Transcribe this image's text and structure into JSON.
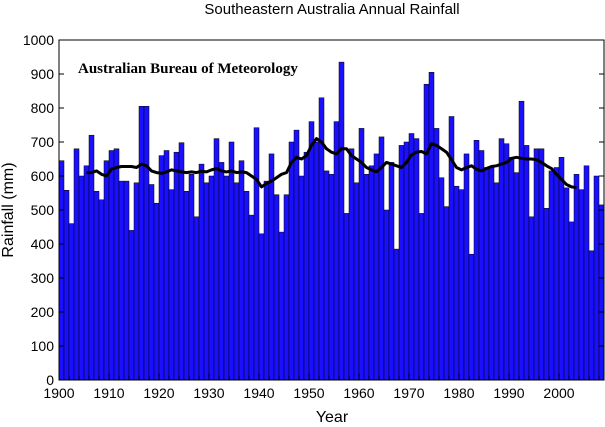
{
  "chart_data": {
    "type": "bar",
    "title": "Southeastern Australia Annual Rainfall",
    "xlabel": "Year",
    "ylabel": "Rainfall (mm)",
    "annotation": "Australian Bureau of Meteorology",
    "xlim": [
      1900,
      2009
    ],
    "ylim": [
      0,
      1000
    ],
    "yticks": [
      0,
      100,
      200,
      300,
      400,
      500,
      600,
      700,
      800,
      900,
      1000
    ],
    "xticks": [
      1900,
      1910,
      1920,
      1930,
      1940,
      1950,
      1960,
      1970,
      1980,
      1990,
      2000
    ],
    "grid": false,
    "bar_color": "#1a10ff",
    "line_color": "#000000",
    "years": [
      1900,
      1901,
      1902,
      1903,
      1904,
      1905,
      1906,
      1907,
      1908,
      1909,
      1910,
      1911,
      1912,
      1913,
      1914,
      1915,
      1916,
      1917,
      1918,
      1919,
      1920,
      1921,
      1922,
      1923,
      1924,
      1925,
      1926,
      1927,
      1928,
      1929,
      1930,
      1931,
      1932,
      1933,
      1934,
      1935,
      1936,
      1937,
      1938,
      1939,
      1940,
      1941,
      1942,
      1943,
      1944,
      1945,
      1946,
      1947,
      1948,
      1949,
      1950,
      1951,
      1952,
      1953,
      1954,
      1955,
      1956,
      1957,
      1958,
      1959,
      1960,
      1961,
      1962,
      1963,
      1964,
      1965,
      1966,
      1967,
      1968,
      1969,
      1970,
      1971,
      1972,
      1973,
      1974,
      1975,
      1976,
      1977,
      1978,
      1979,
      1980,
      1981,
      1982,
      1983,
      1984,
      1985,
      1986,
      1987,
      1988,
      1989,
      1990,
      1991,
      1992,
      1993,
      1994,
      1995,
      1996,
      1997,
      1998,
      1999,
      2000,
      2001,
      2002,
      2003,
      2004,
      2005,
      2006,
      2007,
      2008
    ],
    "series": [
      {
        "type": "bar",
        "values": [
          645,
          558,
          460,
          680,
          600,
          630,
          720,
          555,
          530,
          645,
          675,
          680,
          585,
          585,
          440,
          580,
          805,
          805,
          575,
          520,
          660,
          675,
          560,
          670,
          698,
          555,
          605,
          480,
          635,
          580,
          600,
          710,
          640,
          600,
          700,
          580,
          645,
          555,
          485,
          742,
          430,
          585,
          665,
          545,
          435,
          545,
          700,
          735,
          600,
          670,
          760,
          700,
          830,
          615,
          605,
          760,
          935,
          490,
          680,
          580,
          740,
          605,
          630,
          665,
          715,
          500,
          640,
          385,
          690,
          700,
          725,
          710,
          490,
          870,
          905,
          740,
          595,
          510,
          775,
          570,
          560,
          665,
          370,
          705,
          675,
          625,
          625,
          580,
          710,
          695,
          655,
          610,
          820,
          690,
          480,
          680,
          680,
          505,
          615,
          625,
          655,
          565,
          465,
          605,
          560,
          630,
          380,
          600,
          515
        ]
      },
      {
        "type": "line",
        "x": [
          1905,
          1906,
          1907,
          1908,
          1909,
          1910,
          1911,
          1912,
          1913,
          1914,
          1915,
          1916,
          1917,
          1918,
          1919,
          1920,
          1921,
          1922,
          1923,
          1924,
          1925,
          1926,
          1927,
          1928,
          1929,
          1930,
          1931,
          1932,
          1933,
          1934,
          1935,
          1936,
          1937,
          1938,
          1939,
          1940,
          1941,
          1942,
          1943,
          1944,
          1945,
          1946,
          1947,
          1948,
          1949,
          1950,
          1951,
          1952,
          1953,
          1954,
          1955,
          1956,
          1957,
          1958,
          1959,
          1960,
          1961,
          1962,
          1963,
          1964,
          1965,
          1966,
          1967,
          1968,
          1969,
          1970,
          1971,
          1972,
          1973,
          1974,
          1975,
          1976,
          1977,
          1978,
          1979,
          1980,
          1981,
          1982,
          1983,
          1984,
          1985,
          1986,
          1987,
          1988,
          1989,
          1990,
          1991,
          1992,
          1993,
          1994,
          1995,
          1996,
          1997,
          1998,
          1999,
          2000,
          2001,
          2002,
          2003
        ],
        "values": [
          610,
          610,
          615,
          605,
          600,
          620,
          625,
          628,
          628,
          628,
          625,
          635,
          630,
          615,
          610,
          608,
          612,
          618,
          615,
          612,
          610,
          612,
          610,
          614,
          612,
          618,
          622,
          615,
          612,
          615,
          610,
          612,
          610,
          600,
          590,
          568,
          578,
          585,
          595,
          605,
          610,
          640,
          655,
          650,
          660,
          690,
          710,
          700,
          680,
          670,
          665,
          680,
          680,
          660,
          650,
          640,
          625,
          618,
          612,
          625,
          640,
          635,
          630,
          625,
          640,
          662,
          670,
          672,
          665,
          695,
          690,
          680,
          670,
          648,
          625,
          618,
          625,
          630,
          620,
          615,
          622,
          628,
          630,
          635,
          640,
          652,
          655,
          652,
          650,
          650,
          648,
          640,
          630,
          622,
          605,
          590,
          575,
          568,
          566
        ]
      }
    ]
  }
}
